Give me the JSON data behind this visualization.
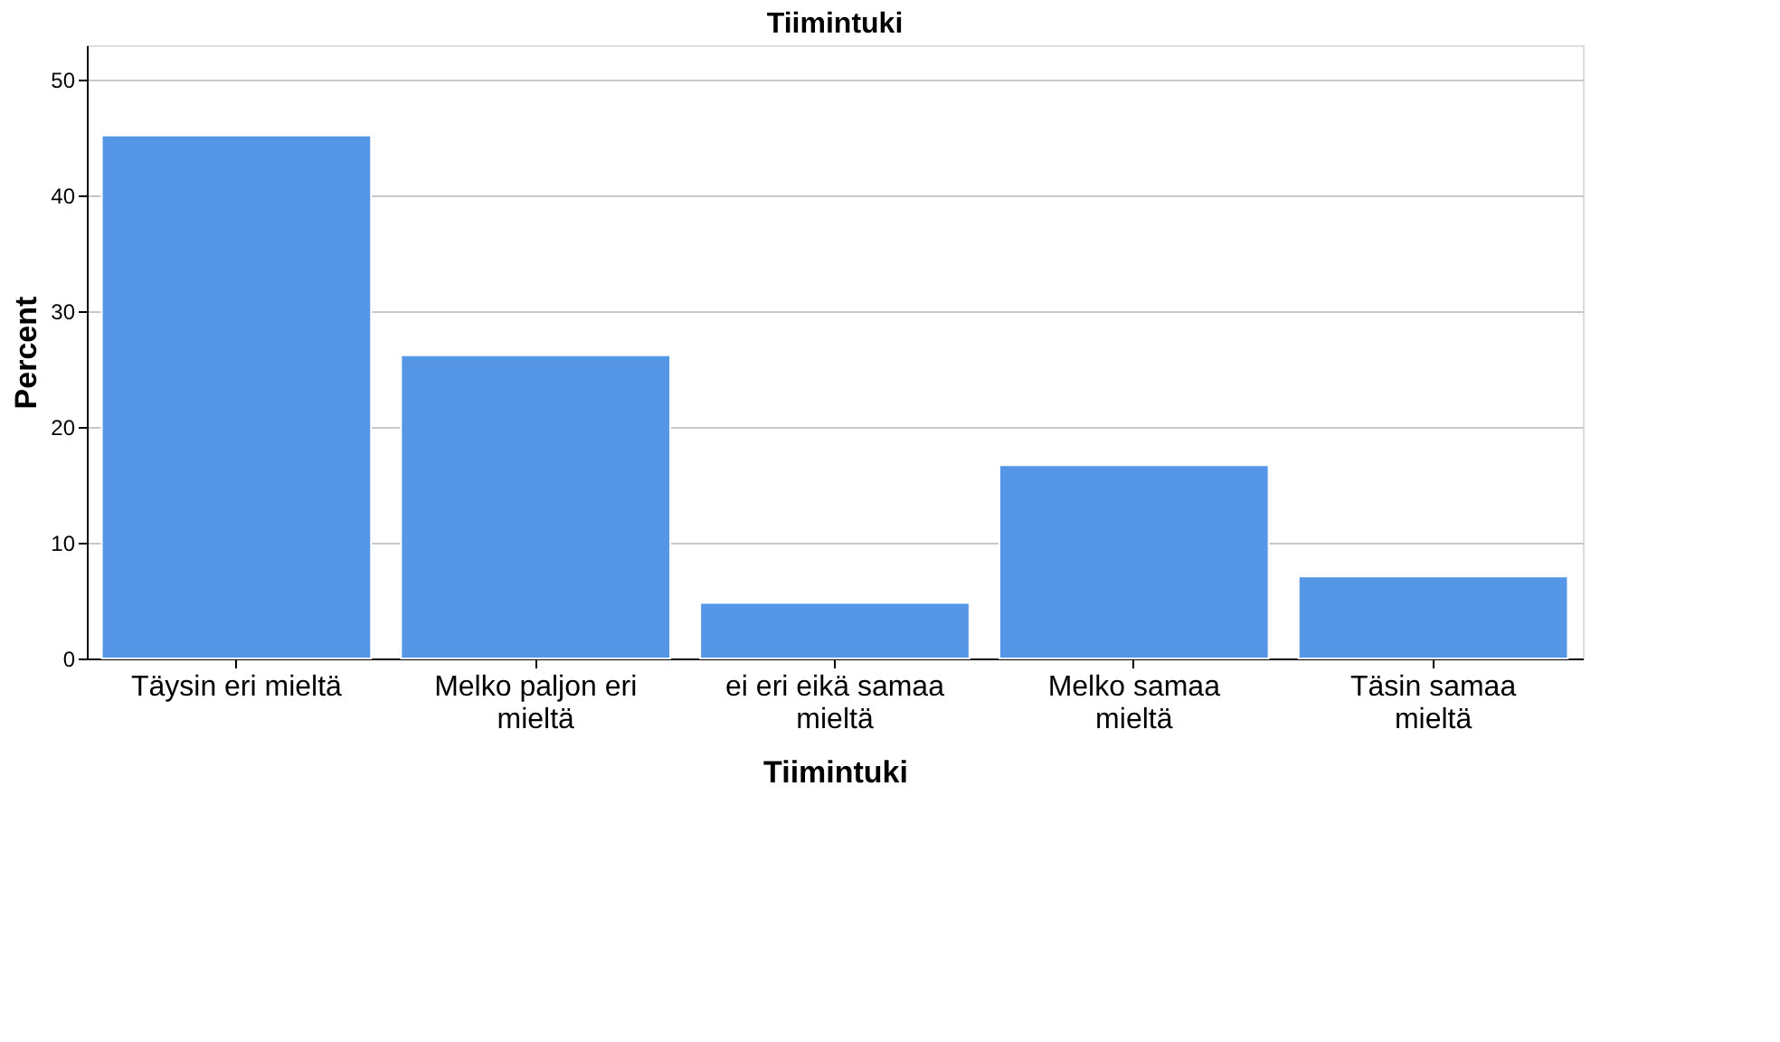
{
  "chart_data": {
    "type": "bar",
    "title": "Tiimintuki",
    "xlabel": "Tiimintuki",
    "ylabel": "Percent",
    "categories": [
      "Täysin eri mieltä",
      "Melko paljon eri mieltä",
      "ei eri eikä samaa mieltä",
      "Melko samaa mieltä",
      "Täsin samaa mieltä"
    ],
    "values": [
      45.2,
      26.2,
      4.8,
      16.7,
      7.1
    ],
    "color": "#5596e6",
    "ylim": [
      0,
      53
    ],
    "yticks": [
      0,
      10,
      20,
      30,
      40,
      50
    ],
    "grid": "y"
  }
}
